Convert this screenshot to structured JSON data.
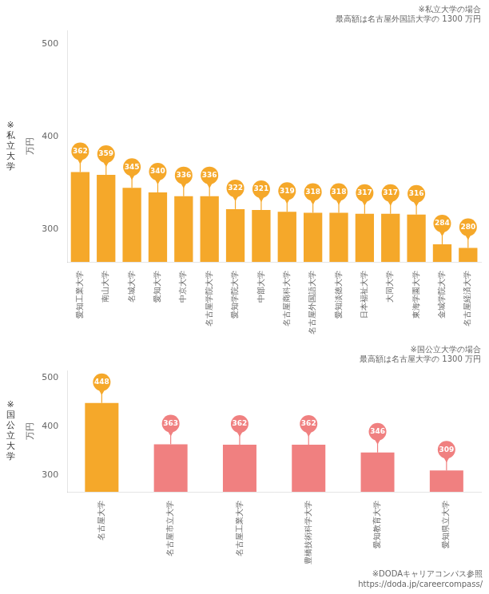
{
  "chart_data": [
    {
      "type": "bar",
      "title": "※\n私\n立\n大\n学",
      "subtitle": [
        "※私立大学の場合",
        "最高額は名古屋外国語大学の 1300 万円"
      ],
      "categories": [
        "愛知工業大学",
        "南山大学",
        "名城大学",
        "愛知大学",
        "中京大学",
        "名古屋学院大学",
        "愛知学院大学",
        "中部大学",
        "名古屋商科大学",
        "名古屋外国語大学",
        "愛知淡徳大学",
        "日本福祉大学",
        "大同大学",
        "東海学園大学",
        "金城学院大学",
        "名古屋経済大学"
      ],
      "values": [
        362,
        359,
        345,
        340,
        336,
        336,
        322,
        321,
        319,
        318,
        318,
        317,
        317,
        316,
        284,
        280
      ],
      "color": "#F5A82A",
      "ylabel": "万円",
      "ylim": [
        265,
        515
      ],
      "yticks": [
        300,
        400,
        500
      ],
      "grid": false,
      "data_labels": true
    },
    {
      "type": "bar",
      "title": "※\n国\n公\n立\n大\n学",
      "subtitle": [
        "※国公立大学の場合",
        "最高額は名古屋大学の 1300 万円"
      ],
      "annotations": [
        "※DODAキャリアコンパス参照",
        "https://doda.jp/careercompass/"
      ],
      "categories": [
        "名古屋大学",
        "名古屋市立大学",
        "名古屋工業大学",
        "豊橋技術科学大学",
        "愛知教育大学",
        "愛知県立大学"
      ],
      "values": [
        448,
        363,
        362,
        362,
        346,
        309
      ],
      "colors": [
        "#F5A82A",
        "#F08080",
        "#F08080",
        "#F08080",
        "#F08080",
        "#F08080"
      ],
      "ylabel": "万円",
      "ylim": [
        265,
        515
      ],
      "yticks": [
        300,
        400,
        500
      ],
      "grid": false,
      "data_labels": true
    }
  ]
}
